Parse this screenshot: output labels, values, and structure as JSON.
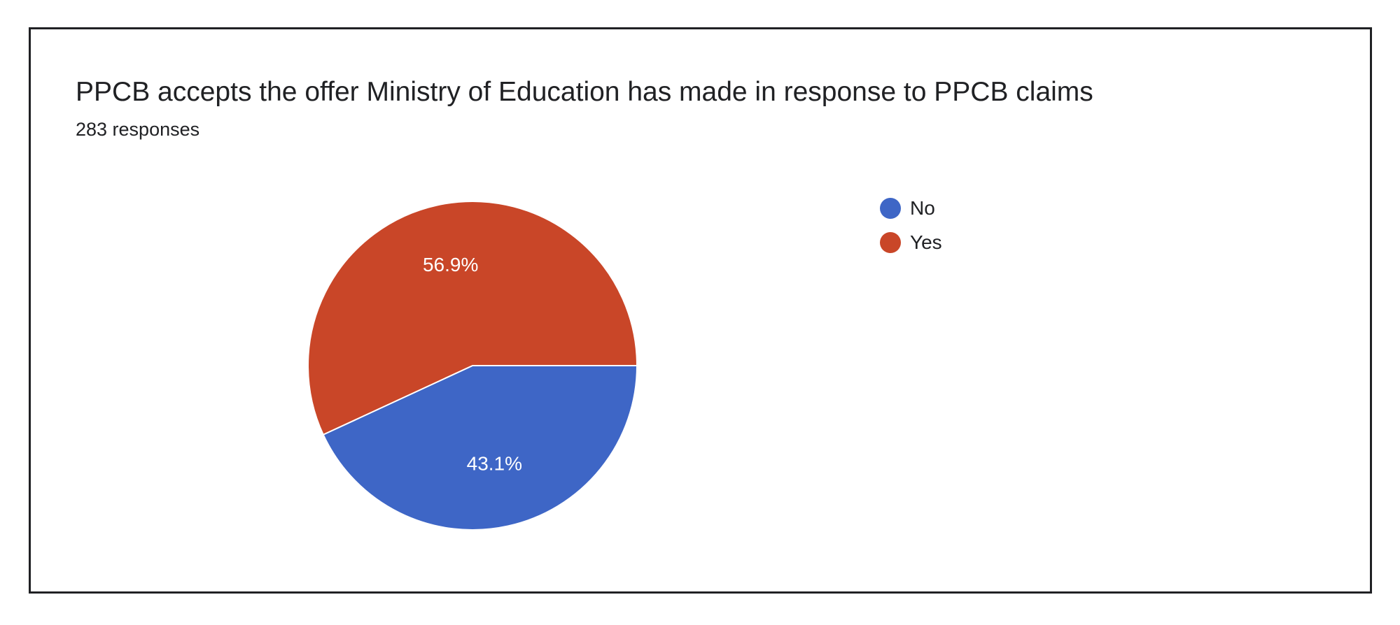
{
  "card": {
    "title": "PPCB accepts the offer Ministry of Education has made in response to PPCB claims",
    "subtitle": "283 responses"
  },
  "chart_data": {
    "type": "pie",
    "title": "PPCB accepts the offer Ministry of Education has made in response to PPCB claims",
    "subtitle": "283 responses",
    "legend_position": "right",
    "slices": [
      {
        "label": "No",
        "value": 43.1,
        "display": "43.1%",
        "color": "#3e66c6"
      },
      {
        "label": "Yes",
        "value": 56.9,
        "display": "56.9%",
        "color": "#c94628"
      }
    ]
  }
}
